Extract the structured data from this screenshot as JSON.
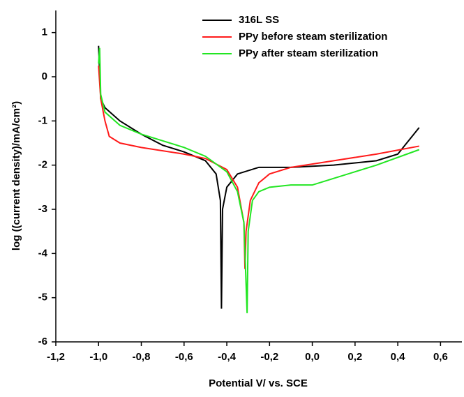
{
  "chart_data": {
    "type": "line",
    "xlabel": "Potential V/ vs. SCE",
    "ylabel": "log ((current density)/mA/cm²)",
    "xlim": [
      -1.2,
      0.7
    ],
    "ylim": [
      -6,
      1.5
    ],
    "xticks": [
      {
        "value": -1.2,
        "label": "-1,2"
      },
      {
        "value": -1.0,
        "label": "-1,0"
      },
      {
        "value": -0.8,
        "label": "-0,8"
      },
      {
        "value": -0.6,
        "label": "-0,6"
      },
      {
        "value": -0.4,
        "label": "-0,4"
      },
      {
        "value": -0.2,
        "label": "-0,2"
      },
      {
        "value": 0,
        "label": "0,0"
      },
      {
        "value": 0.2,
        "label": "0,2"
      },
      {
        "value": 0.4,
        "label": "0,4"
      },
      {
        "value": 0.6,
        "label": "0,6"
      }
    ],
    "yticks": [
      1,
      0,
      -1,
      -2,
      -3,
      -4,
      -5,
      -6
    ],
    "legend": "upper right",
    "series": [
      {
        "name": "316L SS",
        "color": "#000000",
        "x": [
          -1.0,
          -0.99,
          -0.97,
          -0.9,
          -0.8,
          -0.7,
          -0.6,
          -0.5,
          -0.45,
          -0.43,
          -0.425,
          -0.42,
          -0.4,
          -0.35,
          -0.25,
          -0.1,
          0.1,
          0.3,
          0.4,
          0.45,
          0.5
        ],
        "values": [
          0.7,
          -0.5,
          -0.7,
          -1.0,
          -1.3,
          -1.55,
          -1.7,
          -1.9,
          -2.2,
          -2.8,
          -5.25,
          -3.0,
          -2.5,
          -2.2,
          -2.05,
          -2.05,
          -2.0,
          -1.9,
          -1.75,
          -1.45,
          -1.15
        ]
      },
      {
        "name": "PPy before steam sterilization",
        "color": "#ff1a1a",
        "x": [
          -1.0,
          -0.99,
          -0.97,
          -0.95,
          -0.9,
          -0.8,
          -0.6,
          -0.5,
          -0.4,
          -0.35,
          -0.32,
          -0.315,
          -0.31,
          -0.29,
          -0.25,
          -0.2,
          -0.1,
          0.1,
          0.3,
          0.5
        ],
        "values": [
          0.25,
          -0.5,
          -1.0,
          -1.35,
          -1.5,
          -1.6,
          -1.75,
          -1.85,
          -2.1,
          -2.5,
          -3.3,
          -4.35,
          -3.5,
          -2.8,
          -2.4,
          -2.2,
          -2.05,
          -1.9,
          -1.75,
          -1.57
        ]
      },
      {
        "name": "PPy after steam sterilization",
        "color": "#22e622",
        "x": [
          -1.0,
          -0.995,
          -0.99,
          -0.97,
          -0.9,
          -0.8,
          -0.7,
          -0.6,
          -0.5,
          -0.4,
          -0.35,
          -0.32,
          -0.305,
          -0.3,
          -0.28,
          -0.25,
          -0.2,
          -0.1,
          0.0,
          0.1,
          0.3,
          0.5
        ],
        "values": [
          0.3,
          0.65,
          -0.4,
          -0.8,
          -1.1,
          -1.3,
          -1.45,
          -1.6,
          -1.8,
          -2.15,
          -2.6,
          -3.3,
          -5.35,
          -3.5,
          -2.8,
          -2.6,
          -2.5,
          -2.45,
          -2.45,
          -2.3,
          -2.0,
          -1.65
        ]
      }
    ]
  }
}
